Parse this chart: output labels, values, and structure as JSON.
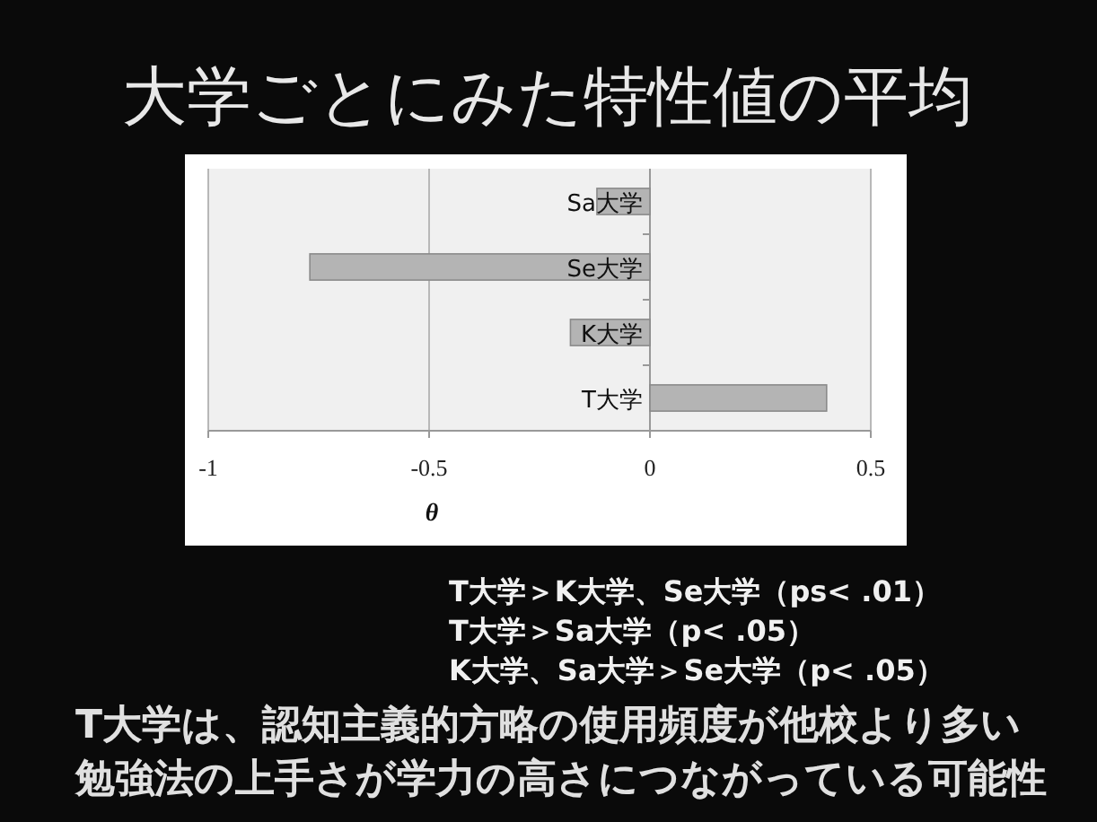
{
  "chart_data": {
    "type": "bar",
    "orientation": "horizontal",
    "title": "大学ごとにみた特性値の平均",
    "categories": [
      "Sa大学",
      "Se大学",
      "K大学",
      "T大学"
    ],
    "values": [
      -0.12,
      -0.77,
      -0.18,
      0.4
    ],
    "color": "#b4b4b4",
    "xlim": [
      -1,
      0.5
    ],
    "xticks": [
      -1,
      -0.5,
      0,
      0.5
    ],
    "xlabel": "θ",
    "grid": "x",
    "annotations": [
      "T大学＞K大学、Se大学（ps< .01）",
      "T大学＞Sa大学（p< .05）",
      "K大学、Sa大学＞Se大学（p< .05）",
      "T大学は、認知主義的方略の使用頻度が他校より多い",
      "勉強法の上手さが学力の高さにつながっている可能性"
    ]
  }
}
